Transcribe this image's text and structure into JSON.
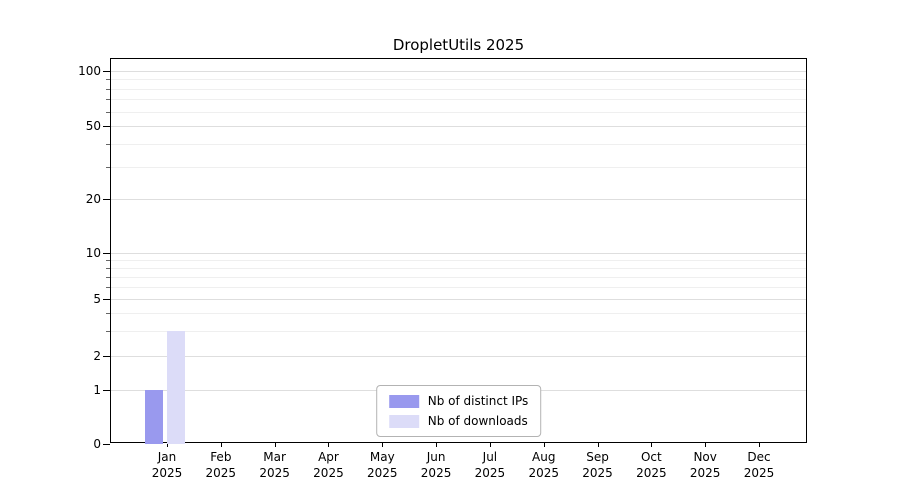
{
  "chart_data": {
    "type": "bar",
    "title": "DropletUtils 2025",
    "x_categories": [
      {
        "month": "Jan",
        "year": "2025"
      },
      {
        "month": "Feb",
        "year": "2025"
      },
      {
        "month": "Mar",
        "year": "2025"
      },
      {
        "month": "Apr",
        "year": "2025"
      },
      {
        "month": "May",
        "year": "2025"
      },
      {
        "month": "Jun",
        "year": "2025"
      },
      {
        "month": "Jul",
        "year": "2025"
      },
      {
        "month": "Aug",
        "year": "2025"
      },
      {
        "month": "Sep",
        "year": "2025"
      },
      {
        "month": "Oct",
        "year": "2025"
      },
      {
        "month": "Nov",
        "year": "2025"
      },
      {
        "month": "Dec",
        "year": "2025"
      }
    ],
    "series": [
      {
        "name": "Nb of distinct IPs",
        "color": "#9999ee",
        "values": [
          1,
          0,
          0,
          0,
          0,
          0,
          0,
          0,
          0,
          0,
          0,
          0
        ]
      },
      {
        "name": "Nb of downloads",
        "color": "#dcdcf8",
        "values": [
          3,
          0,
          0,
          0,
          0,
          0,
          0,
          0,
          0,
          0,
          0,
          0
        ]
      }
    ],
    "y_axis": {
      "scale": "log",
      "major_ticks": [
        0,
        1,
        2,
        5,
        10,
        20,
        50,
        100
      ],
      "minor_ticks": [
        3,
        4,
        6,
        7,
        8,
        9,
        30,
        40,
        60,
        70,
        80,
        90
      ]
    },
    "grid": true,
    "legend_position": "bottom-center"
  }
}
